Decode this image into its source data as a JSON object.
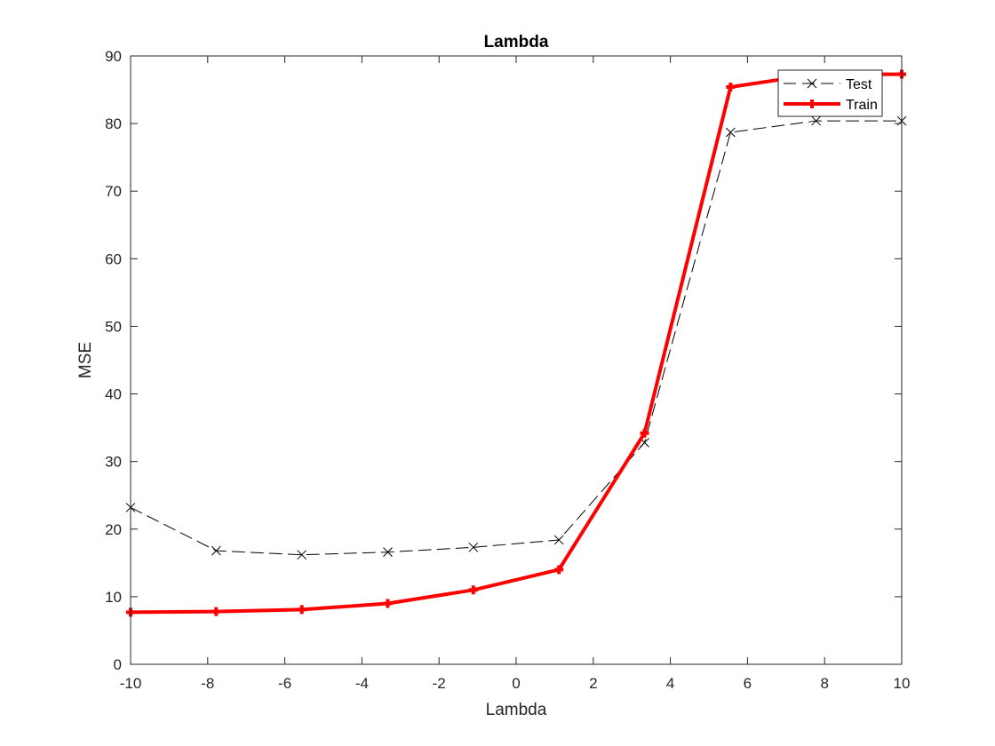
{
  "chart_data": {
    "type": "line",
    "title": "Lambda",
    "xlabel": "Lambda",
    "ylabel": "MSE",
    "xlim": [
      -10,
      10
    ],
    "ylim": [
      0,
      90
    ],
    "xticks": [
      "-10",
      "-8",
      "-6",
      "-4",
      "-2",
      "0",
      "2",
      "4",
      "6",
      "8",
      "10"
    ],
    "yticks": [
      "0",
      "10",
      "20",
      "30",
      "40",
      "50",
      "60",
      "70",
      "80",
      "90"
    ],
    "grid": false,
    "legend_position": "top-right",
    "x": [
      -10,
      -7.78,
      -5.56,
      -3.33,
      -1.11,
      1.11,
      3.33,
      5.56,
      7.78,
      10
    ],
    "series": [
      {
        "name": "Test",
        "color": "#000000",
        "line_style": "dashed",
        "marker": "x",
        "values": [
          23.2,
          16.8,
          16.2,
          16.6,
          17.3,
          18.4,
          32.8,
          78.7,
          80.4,
          80.4
        ]
      },
      {
        "name": "Train",
        "color": "#ff0000",
        "line_style": "solid",
        "marker": "plus",
        "values": [
          7.7,
          7.8,
          8.1,
          9.0,
          11.0,
          14.0,
          34.2,
          85.4,
          87.3,
          87.3
        ]
      }
    ]
  }
}
